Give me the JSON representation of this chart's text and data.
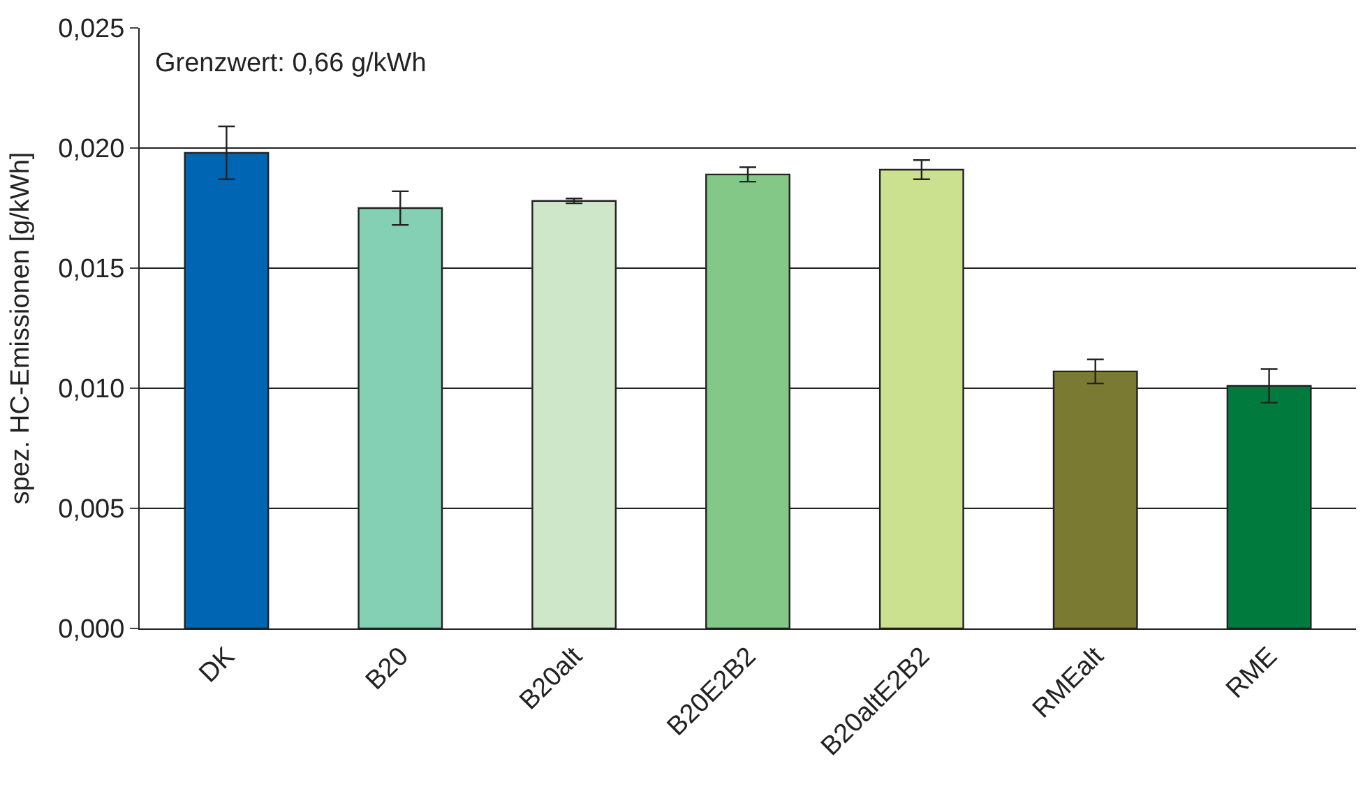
{
  "chart_data": {
    "type": "bar",
    "ylabel": "spez. HC-Emissionen [g/kWh]",
    "categories": [
      "DK",
      "B20",
      "B20alt",
      "B20E2B2",
      "B20altE2B2",
      "RMEalt",
      "RME"
    ],
    "values": [
      0.0198,
      0.0175,
      0.0178,
      0.0189,
      0.0191,
      0.0107,
      0.0101
    ],
    "errors": [
      0.0011,
      0.0007,
      0.0001,
      0.0003,
      0.0004,
      0.0005,
      0.0007
    ],
    "colors": [
      "#0066b3",
      "#84d0b5",
      "#cde7c8",
      "#84c887",
      "#cce18f",
      "#7a7a32",
      "#007a3d"
    ],
    "ylim": [
      0,
      0.025
    ],
    "yticks": [
      {
        "value": 0,
        "label": "0,000"
      },
      {
        "value": 0.005,
        "label": "0,005"
      },
      {
        "value": 0.01,
        "label": "0,010"
      },
      {
        "value": 0.015,
        "label": "0,015"
      },
      {
        "value": 0.02,
        "label": "0,020"
      },
      {
        "value": 0.025,
        "label": "0,025"
      }
    ],
    "grid": "y",
    "annotations": [
      "Grenzwert: 0,66 g/kWh"
    ]
  }
}
